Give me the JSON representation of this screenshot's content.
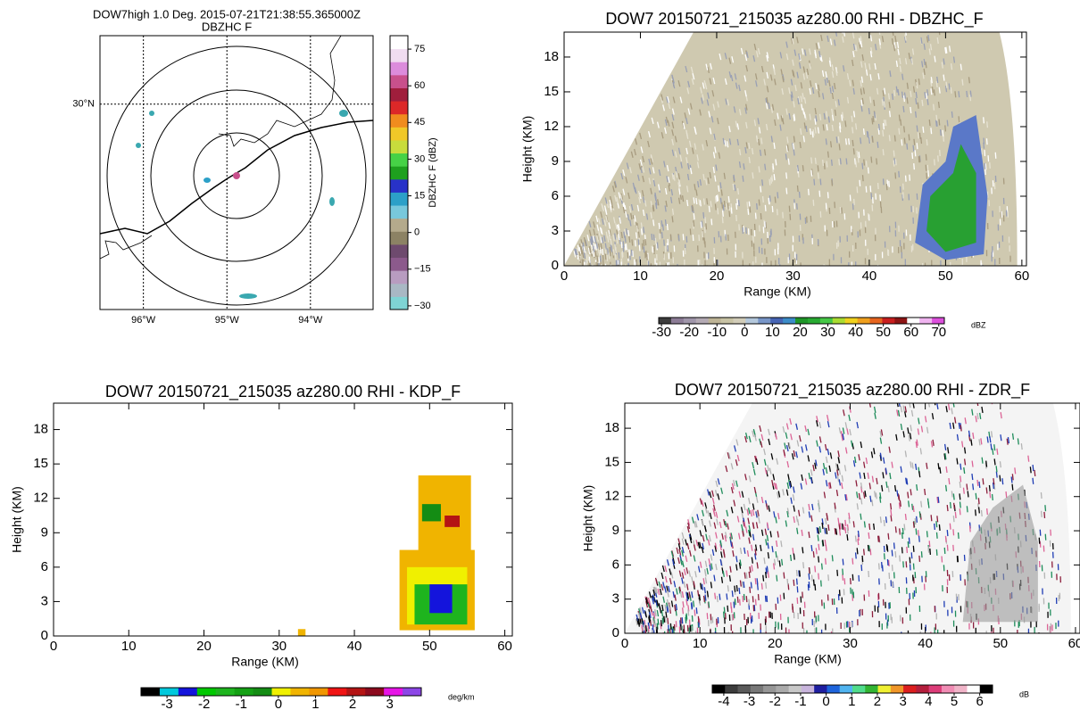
{
  "chart_data": [
    {
      "type": "ppi",
      "title": "DOW7high 1.0 Deg. 2015-07-21T21:38:55.365000Z",
      "subtitle": "DBZHC F",
      "xlim": [
        -96.52,
        -93.25
      ],
      "ylim": [
        27.87,
        30.71
      ],
      "xticks": [
        {
          "value": -96,
          "label": "96°W"
        },
        {
          "value": -95,
          "label": "95°W"
        },
        {
          "value": -94,
          "label": "94°W"
        }
      ],
      "yticks": [
        {
          "value": 30,
          "label": "30°N"
        }
      ],
      "grid": true,
      "colorbar": {
        "label": "DBZHC F (dBZ)",
        "lim": [
          -31.5,
          80.5
        ],
        "ticks": [
          {
            "value": -30,
            "label": "−30"
          },
          {
            "value": -15,
            "label": "−15"
          },
          0,
          15,
          30,
          45,
          60,
          75
        ],
        "colors": [
          "#7fd4d4",
          "#a9b8c4",
          "#b89cc0",
          "#8c5a8c",
          "#6e4a6e",
          "#8c8264",
          "#b4aa8c",
          "#78c8dc",
          "#2ca0c8",
          "#2832c8",
          "#1ea01e",
          "#46d246",
          "#c8dc3c",
          "#f0c828",
          "#f08c1e",
          "#dc2828",
          "#a01e3c",
          "#c8508c",
          "#dc8cdc",
          "#f0dcf0",
          "#ffffff"
        ]
      }
    },
    {
      "type": "rhi",
      "title": "DOW7 20150721_215035 az280.00 RHI - DBZHC_F",
      "xlabel": "Range (KM)",
      "ylabel": "Height (KM)",
      "xlim": [
        0,
        60.6
      ],
      "ylim": [
        0,
        20.15
      ],
      "xticks": [
        0,
        10,
        20,
        30,
        40,
        50,
        60
      ],
      "yticks": [
        0,
        3,
        6,
        9,
        12,
        15,
        18
      ],
      "colorbar": {
        "label": "dBZ",
        "lim": [
          -31,
          72
        ],
        "ticks": [
          -30,
          -20,
          -10,
          0,
          10,
          20,
          30,
          40,
          50,
          60,
          70
        ],
        "colors": [
          "#3c3c3c",
          "#8c7c96",
          "#a096aa",
          "#b4aab4",
          "#beb496",
          "#c8c3a5",
          "#d2cdb9",
          "#b4c8dc",
          "#7896c8",
          "#4664b4",
          "#3c8cc8",
          "#1e9628",
          "#28aa32",
          "#46c846",
          "#aadc32",
          "#f0d21e",
          "#f0a01e",
          "#e6641e",
          "#c81e1e",
          "#8c1414",
          "#ffffff",
          "#f0b4f0",
          "#dc50dc"
        ]
      }
    },
    {
      "type": "rhi",
      "title": "DOW7 20150721_215035 az280.00 RHI - KDP_F",
      "xlabel": "Range (KM)",
      "ylabel": "Height (KM)",
      "xlim": [
        0,
        61
      ],
      "ylim": [
        0,
        20.3
      ],
      "xticks": [
        0,
        10,
        20,
        30,
        40,
        50,
        60
      ],
      "yticks": [
        0,
        3,
        6,
        9,
        12,
        15,
        18
      ],
      "colorbar": {
        "label": "deg/km",
        "lim": [
          -3.7,
          3.85
        ],
        "ticks": [
          -3,
          -2,
          -1,
          0,
          1,
          2,
          3
        ],
        "colors": [
          "#000000",
          "#00c8dc",
          "#1414dc",
          "#00c800",
          "#1eb41e",
          "#14a014",
          "#148c14",
          "#f0f000",
          "#f0b400",
          "#f09600",
          "#f01414",
          "#b41414",
          "#8c0a1e",
          "#e614e6",
          "#8c46e6"
        ]
      }
    },
    {
      "type": "rhi",
      "title": "DOW7 20150721_215035 az280.00 RHI - ZDR_F",
      "xlabel": "Range (KM)",
      "ylabel": "Height (KM)",
      "xlim": [
        0,
        60.6
      ],
      "ylim": [
        0,
        20.2
      ],
      "xticks": [
        0,
        10,
        20,
        30,
        40,
        50,
        60
      ],
      "yticks": [
        0,
        3,
        6,
        9,
        12,
        15,
        18
      ],
      "colorbar": {
        "label": "dB",
        "lim": [
          -4.45,
          6.5
        ],
        "ticks": [
          -4,
          -3,
          -2,
          -1,
          0,
          1,
          2,
          3,
          4,
          5,
          6
        ],
        "colors": [
          "#000000",
          "#3c3c3c",
          "#5a5a5a",
          "#787878",
          "#969696",
          "#aaaaaa",
          "#c8c8c8",
          "#c8b4dc",
          "#1e1ea0",
          "#1e64dc",
          "#50b4f0",
          "#50dc8c",
          "#32b432",
          "#f0f032",
          "#f09628",
          "#dc1e1e",
          "#b41e3c",
          "#dc3c78",
          "#f08cb4",
          "#f0b4c8",
          "#ffffff",
          "#000000"
        ]
      }
    }
  ]
}
